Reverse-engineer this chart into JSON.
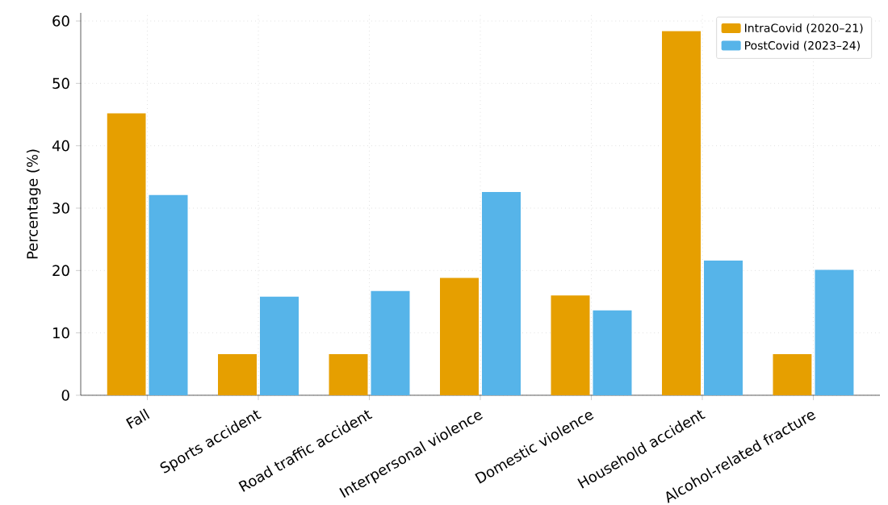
{
  "chart_data": {
    "type": "bar",
    "ylabel": "Percentage (%)",
    "categories": [
      "Fall",
      "Sports accident",
      "Road traffic accident",
      "Interpersonal violence",
      "Domestic violence",
      "Household accident",
      "Alcohol-related fracture"
    ],
    "series": [
      {
        "name": "IntraCovid (2020–21)",
        "color": "#e69f00",
        "values": [
          45.2,
          6.6,
          6.6,
          18.8,
          16.0,
          58.4,
          6.6
        ]
      },
      {
        "name": "PostCovid (2023–24)",
        "color": "#56b4e9",
        "values": [
          32.1,
          15.8,
          16.7,
          32.6,
          13.6,
          21.6,
          20.1
        ]
      }
    ],
    "ylim": [
      0,
      61.3
    ],
    "yticks": [
      0,
      10,
      20,
      30,
      40,
      50,
      60
    ],
    "grid": true,
    "legend": "top right"
  }
}
